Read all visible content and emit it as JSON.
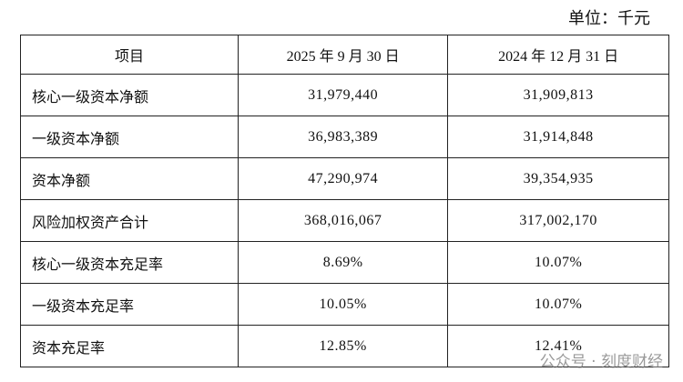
{
  "header": {
    "unit": "单位：千元"
  },
  "table": {
    "columns": [
      "项目",
      "2025 年 9 月 30 日",
      "2024 年 12 月 31 日"
    ],
    "rows": [
      [
        "核心一级资本净额",
        "31,979,440",
        "31,909,813"
      ],
      [
        "一级资本净额",
        "36,983,389",
        "31,914,848"
      ],
      [
        "资本净额",
        "47,290,974",
        "39,354,935"
      ],
      [
        "风险加权资产合计",
        "368,016,067",
        "317,002,170"
      ],
      [
        "核心一级资本充足率",
        "8.69%",
        "10.07%"
      ],
      [
        "一级资本充足率",
        "10.05%",
        "10.07%"
      ],
      [
        "资本充足率",
        "12.85%",
        "12.41%"
      ]
    ]
  },
  "watermark": "公众号 · 刻度财经"
}
